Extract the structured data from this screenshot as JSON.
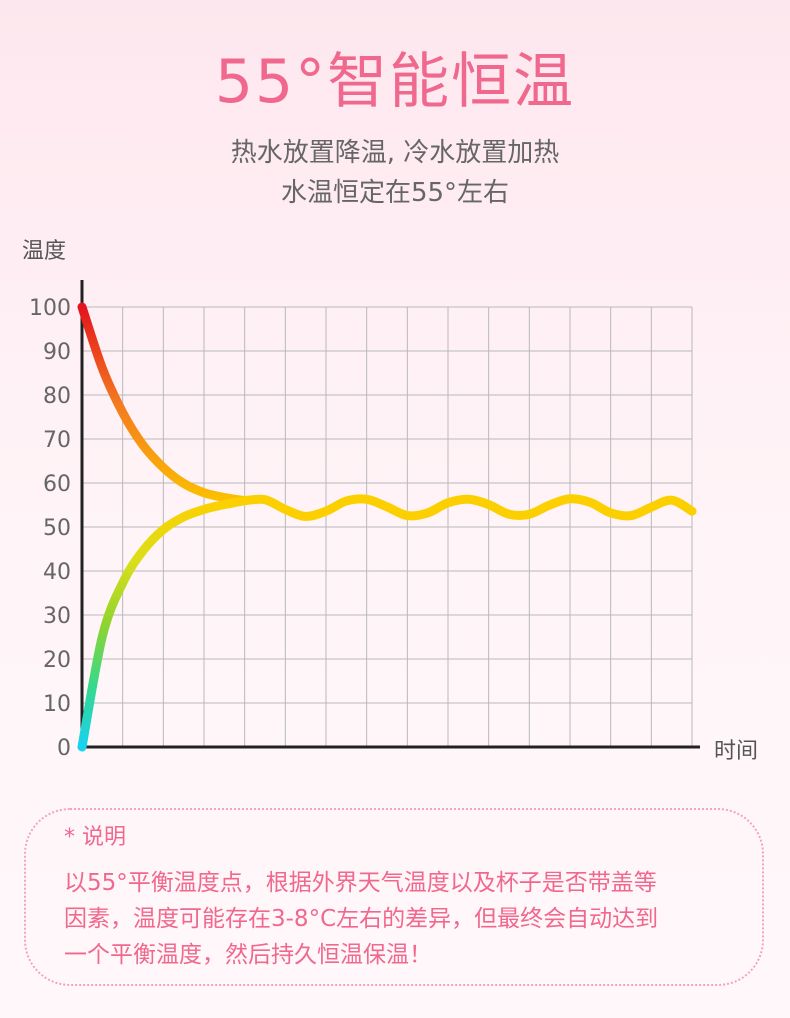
{
  "header": {
    "title": "55°智能恒温",
    "subtitle_line1": "热水放置降温, 冷水放置加热",
    "subtitle_line2": "水温恒定在55°左右"
  },
  "chart_data": {
    "type": "line",
    "ylabel": "温度",
    "xlabel": "时间",
    "yticks": [
      "100",
      "90",
      "80",
      "70",
      "60",
      "50",
      "40",
      "30",
      "20",
      "10",
      "0"
    ],
    "ylim": [
      0,
      100
    ],
    "xlim": [
      0,
      15
    ],
    "grid": true,
    "series": [
      {
        "colors": [
          "#e4141e",
          "#f47a1f",
          "#fbc000"
        ],
        "x": [
          0,
          0.5,
          1,
          1.5,
          2,
          2.5,
          3,
          3.5,
          4
        ],
        "values": [
          100,
          86.1,
          76.0,
          68.6,
          63.5,
          59.9,
          57.8,
          56.7,
          56.0
        ]
      },
      {
        "colors": [
          "#17d2f0",
          "#36d98a",
          "#8fd42e",
          "#d9df1a",
          "#fcd000"
        ],
        "x": [
          0,
          0.5,
          1,
          1.5,
          2,
          2.5,
          3,
          3.5,
          4
        ],
        "values": [
          0,
          25.1,
          37.3,
          44.6,
          49.4,
          52.3,
          54.0,
          55.1,
          56.0
        ]
      },
      {
        "colors": [
          "#fcd000",
          "#fcd000"
        ],
        "x": [
          4,
          4.5,
          5,
          5.5,
          6,
          6.5,
          7,
          7.5,
          8,
          8.5,
          9,
          9.5,
          10,
          10.5,
          11,
          11.5,
          12,
          12.5,
          13,
          13.5,
          14,
          14.5,
          15
        ],
        "values": [
          56.0,
          56.2,
          54.0,
          52.4,
          53.6,
          55.9,
          56.3,
          54.6,
          52.6,
          53.2,
          55.5,
          56.3,
          55.1,
          52.9,
          52.9,
          55.0,
          56.4,
          55.6,
          53.2,
          52.6,
          54.5,
          56.1,
          53.6
        ]
      }
    ]
  },
  "note": {
    "heading": "* 说明",
    "line1": "以55°平衡温度点，根据外界天气温度以及杯子是否带盖等",
    "line2": "因素，温度可能存在3-8°C左右的差异，但最终会自动达到",
    "line3": "一个平衡温度，然后持久恒温保温！"
  }
}
